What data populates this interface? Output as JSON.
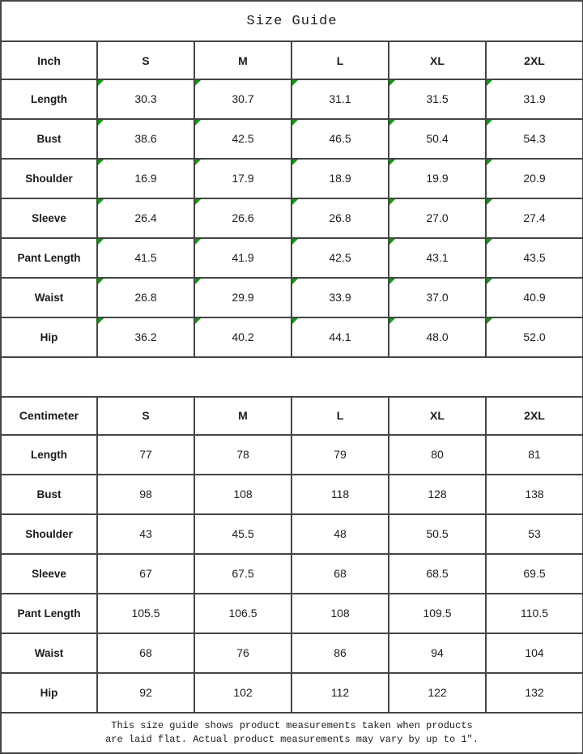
{
  "title": "Size Guide",
  "size_headers": [
    "S",
    "M",
    "L",
    "XL",
    "2XL"
  ],
  "inch": {
    "unit": "Inch",
    "rows": [
      {
        "label": "Length",
        "values": [
          "30.3",
          "30.7",
          "31.1",
          "31.5",
          "31.9"
        ]
      },
      {
        "label": "Bust",
        "values": [
          "38.6",
          "42.5",
          "46.5",
          "50.4",
          "54.3"
        ]
      },
      {
        "label": "Shoulder",
        "values": [
          "16.9",
          "17.9",
          "18.9",
          "19.9",
          "20.9"
        ]
      },
      {
        "label": "Sleeve",
        "values": [
          "26.4",
          "26.6",
          "26.8",
          "27.0",
          "27.4"
        ]
      },
      {
        "label": "Pant Length",
        "values": [
          "41.5",
          "41.9",
          "42.5",
          "43.1",
          "43.5"
        ]
      },
      {
        "label": "Waist",
        "values": [
          "26.8",
          "29.9",
          "33.9",
          "37.0",
          "40.9"
        ]
      },
      {
        "label": "Hip",
        "values": [
          "36.2",
          "40.2",
          "44.1",
          "48.0",
          "52.0"
        ]
      }
    ]
  },
  "cm": {
    "unit": "Centimeter",
    "rows": [
      {
        "label": "Length",
        "values": [
          "77",
          "78",
          "79",
          "80",
          "81"
        ]
      },
      {
        "label": "Bust",
        "values": [
          "98",
          "108",
          "118",
          "128",
          "138"
        ]
      },
      {
        "label": "Shoulder",
        "values": [
          "43",
          "45.5",
          "48",
          "50.5",
          "53"
        ]
      },
      {
        "label": "Sleeve",
        "values": [
          "67",
          "67.5",
          "68",
          "68.5",
          "69.5"
        ]
      },
      {
        "label": "Pant Length",
        "values": [
          "105.5",
          "106.5",
          "108",
          "109.5",
          "110.5"
        ]
      },
      {
        "label": "Waist",
        "values": [
          "68",
          "76",
          "86",
          "94",
          "104"
        ]
      },
      {
        "label": "Hip",
        "values": [
          "92",
          "102",
          "112",
          "122",
          "132"
        ]
      }
    ]
  },
  "footer": {
    "line1": "This size guide shows product measurements taken when products",
    "line2": "are laid flat. Actual product measurements may vary by up to 1″."
  },
  "colors": {
    "grid_border": "#454545",
    "outer_border": "#262626",
    "marker_green": "#129912",
    "text": "#1c1c1c"
  }
}
